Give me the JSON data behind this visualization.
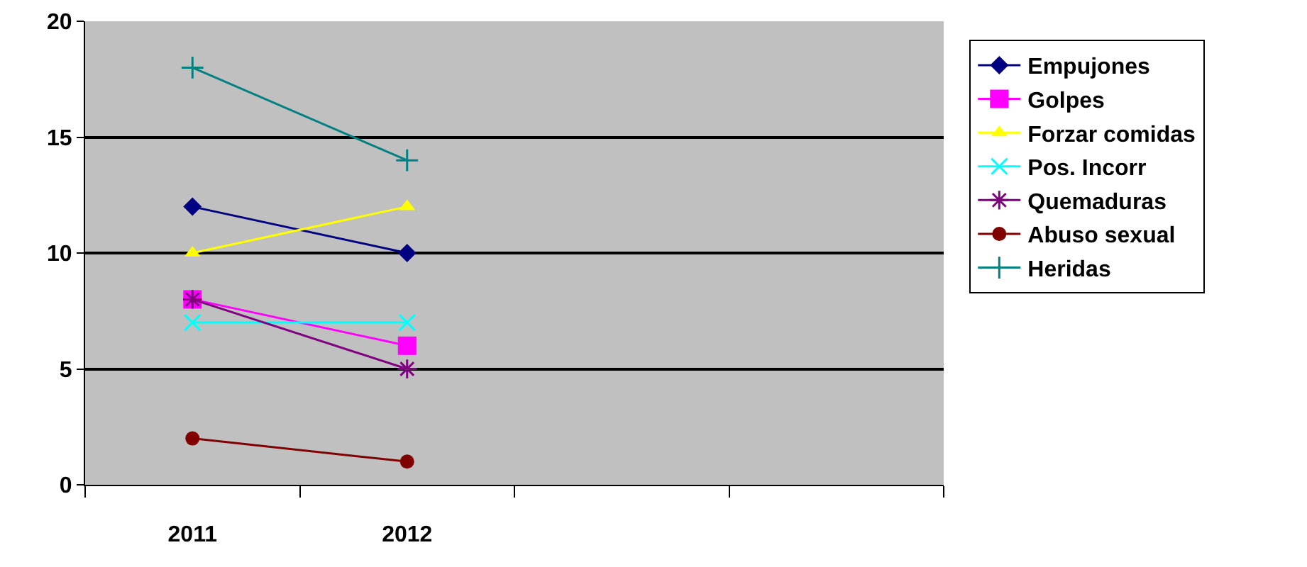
{
  "chart_data": {
    "type": "line",
    "categories": [
      "2011",
      "2012",
      null,
      null
    ],
    "ylim": [
      0,
      20
    ],
    "yticks": [
      0,
      5,
      10,
      15,
      20
    ],
    "grid": "y",
    "legend": "right",
    "series": [
      {
        "name": "Empujones",
        "color": "#000080",
        "marker": "diamond",
        "values": [
          12,
          10,
          null,
          null
        ]
      },
      {
        "name": "Golpes",
        "color": "#ff00ff",
        "marker": "square",
        "values": [
          8,
          6,
          null,
          null
        ]
      },
      {
        "name": "Forzar comidas",
        "color": "#ffff00",
        "marker": "triangle",
        "values": [
          10,
          12,
          null,
          null
        ]
      },
      {
        "name": "Pos. Incorr",
        "color": "#00ffff",
        "marker": "cross",
        "values": [
          7,
          7,
          null,
          null
        ]
      },
      {
        "name": "Quemaduras",
        "color": "#800080",
        "marker": "cross",
        "values": [
          8,
          5,
          null,
          null
        ]
      },
      {
        "name": "Abuso sexual",
        "color": "#800000",
        "marker": "circle",
        "values": [
          2,
          1,
          null,
          null
        ]
      },
      {
        "name": "Heridas",
        "color": "#008080",
        "marker": "cross",
        "values": [
          18,
          14,
          null,
          null
        ]
      }
    ]
  }
}
